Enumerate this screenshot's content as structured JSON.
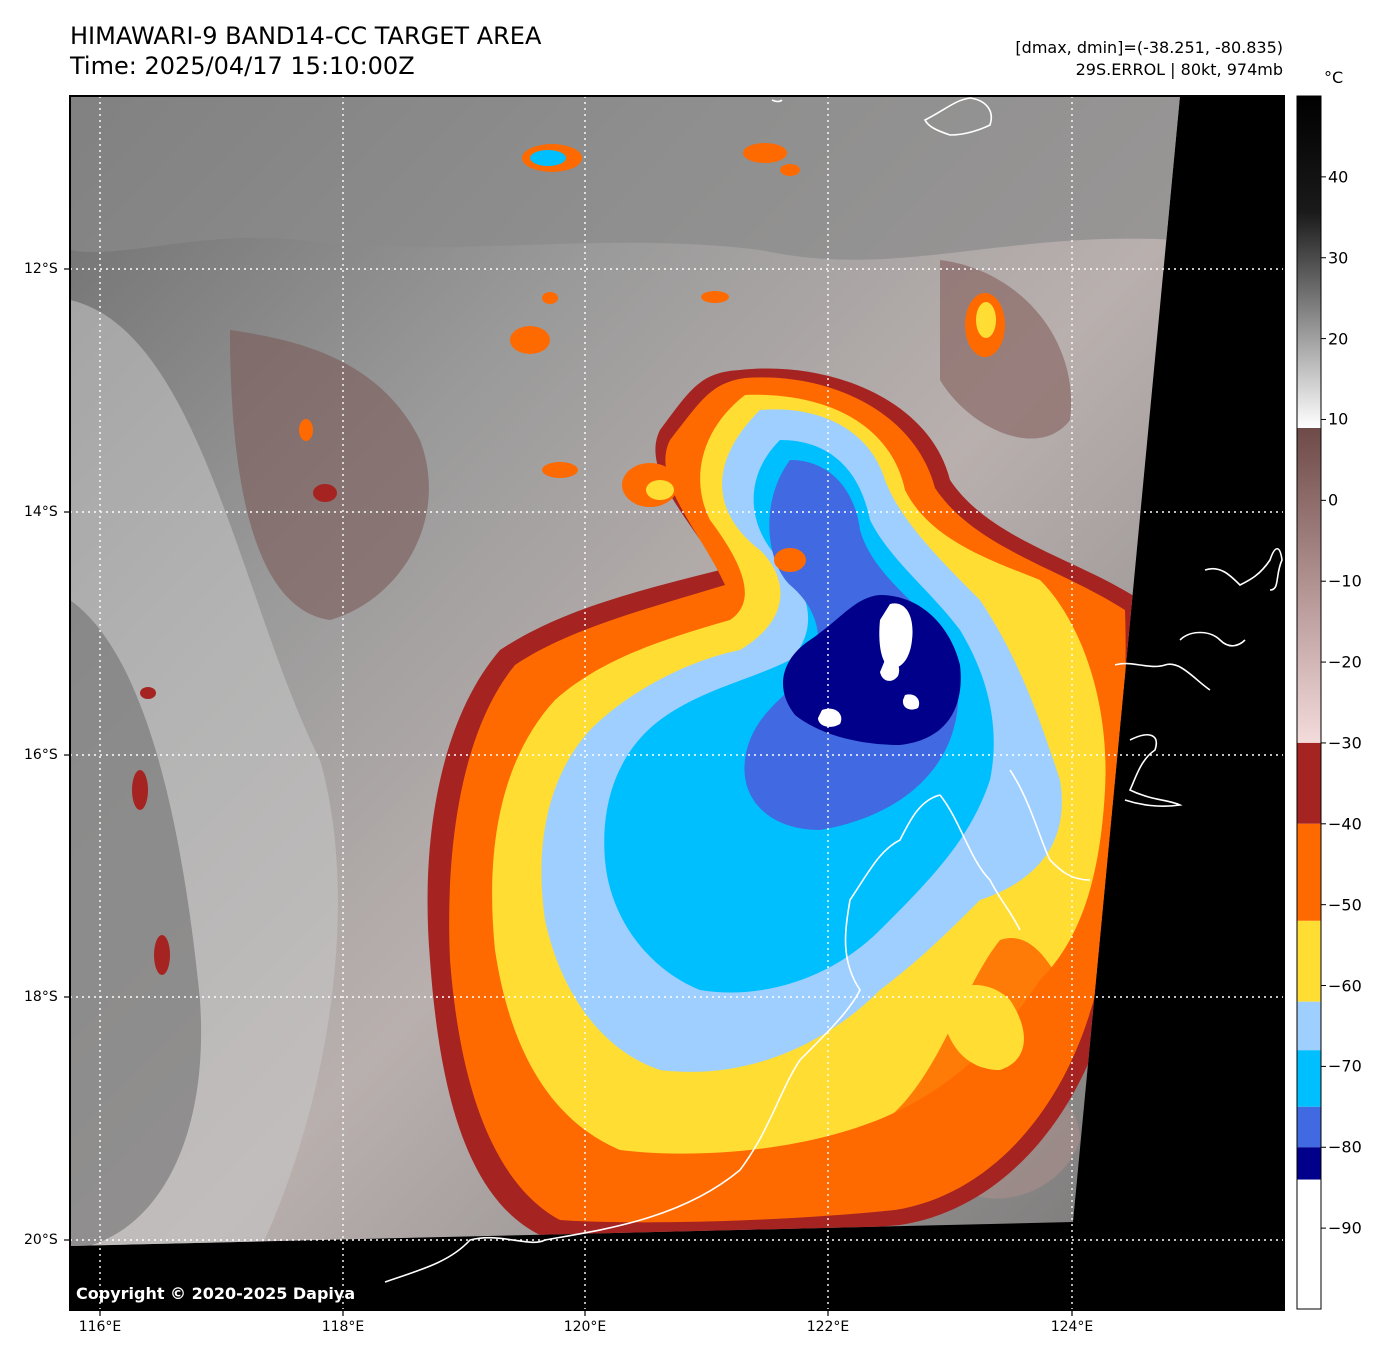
{
  "header": {
    "title_line1": "HIMAWARI-9 BAND14-CC TARGET AREA",
    "title_line2": "Time: 2025/04/17 15:10:00Z",
    "info_line1": "[dmax, dmin]=(-38.251, -80.835)",
    "info_line2": "29S.ERROL | 80kt, 974mb"
  },
  "colorbar": {
    "unit": "°C",
    "ticks": [
      "40",
      "30",
      "20",
      "10",
      "0",
      "−10",
      "−20",
      "−30",
      "−40",
      "−50",
      "−60",
      "−70",
      "−80",
      "−90"
    ],
    "tick_values": [
      40,
      30,
      20,
      10,
      0,
      -10,
      -20,
      -30,
      -40,
      -50,
      -60,
      -70,
      -80,
      -90
    ],
    "range": [
      -100,
      50
    ],
    "segments": [
      {
        "from": -30,
        "to": -40,
        "color": "#a52422"
      },
      {
        "from": -40,
        "to": -52,
        "color": "#ff6a00"
      },
      {
        "from": -52,
        "to": -62,
        "color": "#ffdd33"
      },
      {
        "from": -62,
        "to": -68,
        "color": "#9ecfff"
      },
      {
        "from": -68,
        "to": -75,
        "color": "#00bfff"
      },
      {
        "from": -75,
        "to": -80,
        "color": "#4169e1"
      },
      {
        "from": -80,
        "to": -84,
        "color": "#00008b"
      },
      {
        "from": -84,
        "to": -100,
        "color": "#ffffff"
      }
    ]
  },
  "axes": {
    "lat_labels": [
      "12°S",
      "14°S",
      "16°S",
      "18°S",
      "20°S"
    ],
    "lon_labels": [
      "116°E",
      "118°E",
      "120°E",
      "122°E",
      "124°E"
    ]
  },
  "footer": {
    "copyright": "Copyright © 2020-2025 Dapiya"
  }
}
